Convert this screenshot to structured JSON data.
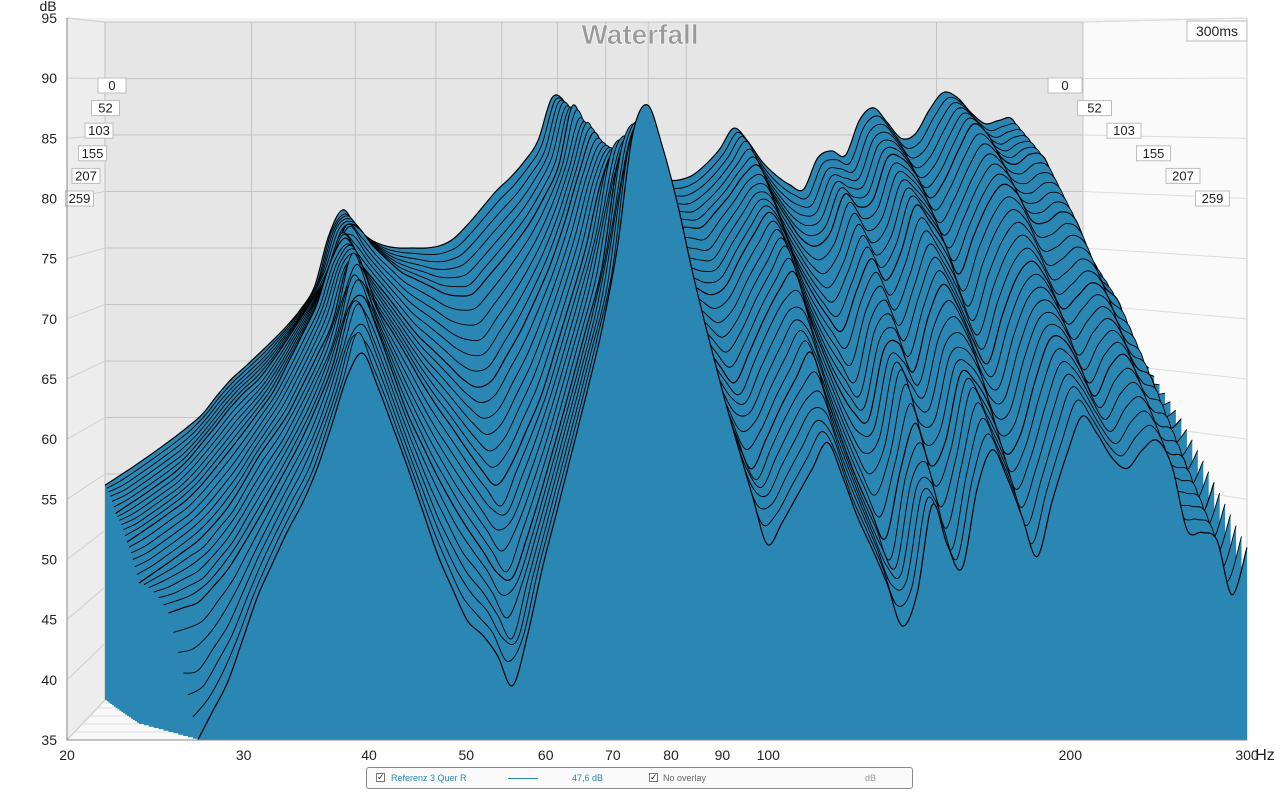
{
  "chart_data": {
    "type": "area",
    "title": "Waterfall",
    "ylabel": "dB",
    "xunit": "Hz",
    "time_label": "300ms",
    "x_scale": "log",
    "xlim": [
      20,
      300
    ],
    "ylim": [
      35,
      95
    ],
    "x_ticks": [
      20,
      30,
      40,
      50,
      60,
      70,
      80,
      90,
      100,
      200,
      300
    ],
    "y_ticks": [
      35,
      40,
      45,
      50,
      55,
      60,
      65,
      70,
      75,
      80,
      85,
      90,
      95
    ],
    "time_slice_labels": [
      "0",
      "52",
      "103",
      "155",
      "207",
      "259"
    ],
    "grid": true,
    "fill_color": "#2a86b3",
    "line_color": "#000000",
    "series": [
      {
        "name": "0",
        "x": [
          27,
          29,
          31,
          33,
          35,
          37,
          39,
          41,
          44,
          47,
          50,
          53,
          56,
          59,
          62,
          66,
          70,
          73,
          76,
          80,
          85,
          90,
          95,
          100,
          108,
          115,
          122,
          130,
          138,
          146,
          155,
          165,
          175,
          185,
          195,
          205,
          215,
          225,
          235,
          245,
          255,
          265,
          275,
          290,
          300
        ],
        "y": [
          35,
          40,
          47,
          52,
          56,
          62,
          68,
          64,
          57,
          50,
          45,
          43,
          39,
          48,
          55,
          64,
          73,
          85,
          88,
          82,
          72,
          64,
          57,
          51,
          56,
          60,
          54,
          49,
          43,
          55,
          48,
          60,
          56,
          50,
          57,
          62,
          60,
          57,
          59,
          60,
          57,
          50,
          54,
          47,
          51
        ]
      },
      {
        "name": "52",
        "x": [
          25,
          27,
          29,
          31,
          33,
          35,
          37,
          39,
          41,
          44,
          47,
          50,
          53,
          56,
          59,
          62,
          66,
          70,
          73,
          76,
          80,
          85,
          90,
          95,
          100,
          108,
          115,
          122,
          130,
          138,
          146,
          155,
          165,
          175,
          185,
          195,
          205,
          215,
          225,
          235,
          245,
          255,
          265,
          275,
          290,
          300
        ],
        "y": [
          45,
          46,
          49,
          53,
          57,
          61,
          66,
          73,
          69,
          62,
          57,
          53,
          50,
          47,
          52,
          58,
          66,
          74,
          84,
          86,
          80,
          72,
          66,
          61,
          57,
          63,
          67,
          61,
          55,
          51,
          62,
          56,
          66,
          63,
          57,
          64,
          69,
          67,
          63,
          66,
          67,
          63,
          57,
          60,
          53,
          56
        ]
      },
      {
        "name": "103",
        "x": [
          23,
          25,
          27,
          29,
          31,
          33,
          35,
          37,
          39,
          41,
          44,
          47,
          50,
          53,
          56,
          59,
          62,
          66,
          70,
          73,
          76,
          80,
          85,
          90,
          95,
          100,
          108,
          115,
          122,
          130,
          138,
          146,
          155,
          165,
          175,
          185,
          195,
          205,
          215,
          225,
          235,
          245,
          255,
          265,
          275,
          290,
          300
        ],
        "y": [
          47,
          49,
          51,
          54,
          58,
          61,
          65,
          69,
          76,
          71,
          67,
          63,
          60,
          57,
          55,
          59,
          63,
          70,
          77,
          84,
          84,
          79,
          73,
          69,
          66,
          64,
          70,
          74,
          68,
          63,
          60,
          69,
          65,
          73,
          70,
          65,
          71,
          75,
          73,
          70,
          72,
          73,
          70,
          65,
          66,
          60,
          61
        ]
      },
      {
        "name": "155",
        "x": [
          22,
          24,
          26,
          28,
          30,
          32,
          34,
          36,
          38,
          40,
          43,
          46,
          49,
          52,
          55,
          58,
          61,
          65,
          69,
          72,
          75,
          79,
          84,
          89,
          94,
          100,
          108,
          115,
          122,
          130,
          138,
          146,
          155,
          165,
          175,
          185,
          195,
          205,
          215,
          225,
          235,
          245,
          255,
          265,
          275,
          290,
          300
        ],
        "y": [
          50,
          52,
          54,
          57,
          60,
          63,
          67,
          71,
          77,
          74,
          71,
          68,
          66,
          64,
          63,
          66,
          69,
          74,
          80,
          86,
          83,
          79,
          75,
          73,
          72,
          71,
          76,
          79,
          74,
          70,
          68,
          75,
          72,
          79,
          77,
          73,
          78,
          81,
          80,
          77,
          78,
          79,
          76,
          72,
          72,
          66,
          65
        ]
      },
      {
        "name": "207",
        "x": [
          21,
          23,
          25,
          27,
          29,
          31,
          33,
          35,
          37,
          39,
          42,
          45,
          48,
          51,
          54,
          57,
          60,
          64,
          68,
          71,
          74,
          78,
          83,
          88,
          93,
          100,
          108,
          115,
          122,
          130,
          138,
          146,
          155,
          165,
          175,
          185,
          195,
          205,
          215,
          225,
          235,
          245,
          255,
          265,
          275,
          290,
          300
        ],
        "y": [
          52,
          54,
          56,
          59,
          62,
          64,
          67,
          70,
          73,
          78,
          75,
          73,
          72,
          71,
          71,
          73,
          75,
          78,
          82,
          88,
          84,
          80,
          78,
          77,
          77,
          77,
          80,
          83,
          79,
          76,
          75,
          80,
          78,
          84,
          82,
          79,
          83,
          86,
          85,
          82,
          83,
          84,
          81,
          77,
          76,
          70,
          68
        ]
      },
      {
        "name": "259",
        "x": [
          20,
          22,
          24,
          26,
          28,
          30,
          32,
          34,
          36,
          38,
          41,
          44,
          47,
          50,
          53,
          56,
          59,
          63,
          67,
          70,
          73,
          77,
          82,
          87,
          92,
          100,
          108,
          115,
          122,
          130,
          138,
          146,
          155,
          165,
          175,
          185,
          195,
          205,
          215,
          225,
          235,
          245,
          255,
          265,
          275,
          290,
          300
        ],
        "y": [
          54,
          56,
          58,
          60,
          63,
          65,
          67,
          69,
          72,
          79,
          76,
          75,
          75,
          75,
          76,
          78,
          80,
          82,
          85,
          90,
          86,
          82,
          81,
          81,
          81,
          81,
          83,
          86,
          83,
          81,
          80,
          84,
          83,
          88,
          86,
          84,
          87,
          89,
          88,
          86,
          86,
          87,
          84,
          80,
          78,
          73,
          70
        ]
      }
    ]
  },
  "legend": {
    "series_label": "Referenz 3 Quer R",
    "series_value": "47,6 dB",
    "overlay_label": "No overlay",
    "overlay_unit": "dB",
    "check_mark": "✓"
  }
}
